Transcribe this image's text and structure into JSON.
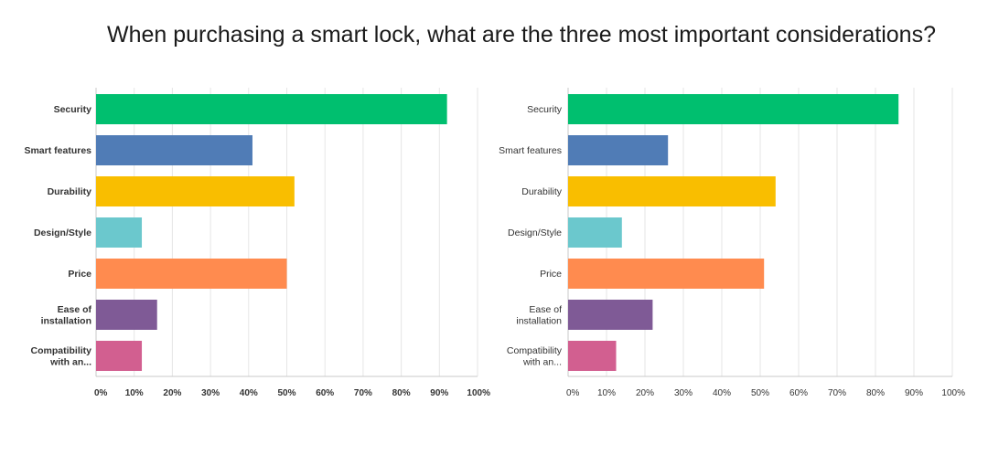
{
  "title": "When purchasing a smart lock, what are the three most important considerations?",
  "chart_data": [
    {
      "type": "bar",
      "orientation": "horizontal",
      "title": "",
      "xlabel": "",
      "ylabel": "",
      "xlim": [
        0,
        100
      ],
      "grid": true,
      "categories": [
        [
          "Security"
        ],
        [
          "Smart features"
        ],
        [
          "Durability"
        ],
        [
          "Design/Style"
        ],
        [
          "Price"
        ],
        [
          "Ease of",
          "installation"
        ],
        [
          "Compatibility",
          "with an..."
        ]
      ],
      "values": [
        92,
        41,
        52,
        12,
        50,
        16,
        12
      ],
      "colors": [
        "#00bf6f",
        "#507cb6",
        "#f9be00",
        "#6bc8cd",
        "#ff8b4f",
        "#7f5a96",
        "#d25f90"
      ],
      "tick_labels": [
        "0%",
        "10%",
        "20%",
        "30%",
        "40%",
        "50%",
        "60%",
        "70%",
        "80%",
        "90%",
        "100%"
      ],
      "bold_labels": true
    },
    {
      "type": "bar",
      "orientation": "horizontal",
      "title": "",
      "xlabel": "",
      "ylabel": "",
      "xlim": [
        0,
        100
      ],
      "grid": true,
      "categories": [
        [
          "Security"
        ],
        [
          "Smart features"
        ],
        [
          "Durability"
        ],
        [
          "Design/Style"
        ],
        [
          "Price"
        ],
        [
          "Ease of",
          "installation"
        ],
        [
          "Compatibility",
          "with an..."
        ]
      ],
      "values": [
        86,
        26,
        54,
        14,
        51,
        22,
        12.5
      ],
      "colors": [
        "#00bf6f",
        "#507cb6",
        "#f9be00",
        "#6bc8cd",
        "#ff8b4f",
        "#7f5a96",
        "#d25f90"
      ],
      "tick_labels": [
        "0%",
        "10%",
        "20%",
        "30%",
        "40%",
        "50%",
        "60%",
        "70%",
        "80%",
        "90%",
        "100%"
      ],
      "bold_labels": false
    }
  ]
}
